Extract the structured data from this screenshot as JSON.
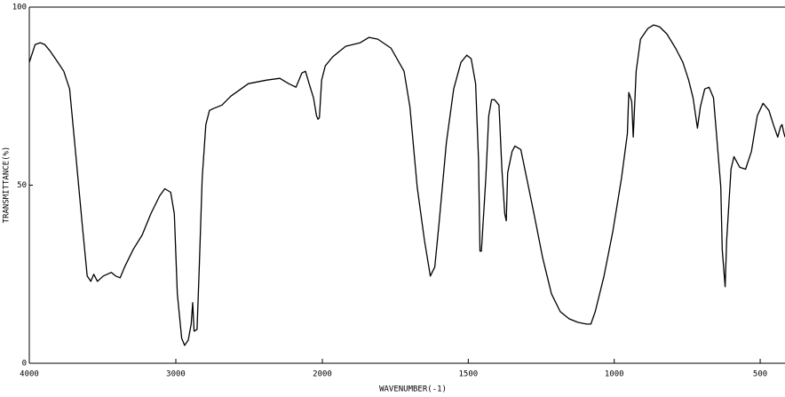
{
  "chart_data": {
    "type": "line",
    "x_label": "WAVENUMBER(-1)",
    "y_label": "TRANSMITTANCE(%)",
    "xlim": [
      4000,
      415
    ],
    "xticks": [
      4000,
      3000,
      2000,
      1500,
      1000,
      500
    ],
    "x_scale_change": 2000,
    "ylim": [
      0,
      100
    ],
    "yticks": [
      0,
      50,
      100
    ],
    "series": [
      {
        "color": "#000000",
        "x": [
          4000,
          3960,
          3925,
          3895,
          3855,
          3805,
          3765,
          3725,
          3685,
          3640,
          3605,
          3580,
          3560,
          3535,
          3495,
          3440,
          3410,
          3380,
          3350,
          3290,
          3230,
          3170,
          3110,
          3075,
          3035,
          3010,
          2990,
          2960,
          2940,
          2915,
          2895,
          2885,
          2875,
          2855,
          2840,
          2820,
          2795,
          2770,
          2745,
          2685,
          2625,
          2505,
          2380,
          2290,
          2230,
          2180,
          2140,
          2115,
          2090,
          2060,
          2040,
          2030,
          2020,
          2005,
          1990,
          1965,
          1920,
          1870,
          1840,
          1810,
          1765,
          1720,
          1700,
          1675,
          1650,
          1630,
          1615,
          1600,
          1575,
          1550,
          1525,
          1505,
          1490,
          1475,
          1465,
          1460,
          1455,
          1440,
          1430,
          1420,
          1410,
          1395,
          1385,
          1375,
          1370,
          1365,
          1350,
          1340,
          1320,
          1300,
          1275,
          1245,
          1215,
          1185,
          1155,
          1125,
          1095,
          1080,
          1065,
          1035,
          1005,
          975,
          955,
          950,
          940,
          935,
          925,
          910,
          885,
          865,
          845,
          820,
          790,
          765,
          745,
          730,
          715,
          705,
          690,
          675,
          660,
          650,
          635,
          630,
          620,
          615,
          600,
          590,
          570,
          550,
          530,
          510,
          490,
          470,
          455,
          440,
          430,
          425,
          420,
          415
        ],
        "values": [
          84.5,
          89.5,
          90,
          89.5,
          87.5,
          84.5,
          82,
          77,
          59.5,
          39.5,
          24.5,
          23,
          25,
          23,
          24.5,
          25.5,
          24.5,
          24,
          27,
          32,
          36,
          42,
          47,
          49,
          48,
          42,
          19.5,
          7,
          5,
          6.5,
          11,
          17,
          9,
          9.5,
          27,
          52,
          67,
          71,
          71.5,
          72.5,
          75,
          78.5,
          79.5,
          80,
          78.5,
          77.5,
          81.5,
          82,
          78.5,
          74.5,
          69.5,
          68.5,
          69,
          79.5,
          83.5,
          86,
          89,
          90,
          91.5,
          91,
          88.5,
          82,
          72,
          49.5,
          34.5,
          24.5,
          27,
          39.5,
          62,
          77,
          84.5,
          86.5,
          85.5,
          78.5,
          57,
          31.5,
          31.5,
          52,
          69.5,
          74,
          74,
          72.5,
          54.5,
          42,
          40,
          53.5,
          59.5,
          61,
          60,
          52,
          42,
          29.5,
          19.5,
          14.5,
          12.5,
          11.5,
          11,
          11,
          14.5,
          24.5,
          37,
          52,
          64.5,
          76,
          73.5,
          63.5,
          82,
          91,
          94,
          95,
          94.5,
          92.5,
          88.5,
          84.5,
          79.5,
          74.5,
          66,
          72,
          77,
          77.5,
          74.5,
          64.5,
          49.5,
          32,
          21.5,
          34.5,
          54.5,
          58,
          55,
          54.5,
          59.5,
          69.5,
          73,
          71,
          67,
          63.5,
          66.5,
          67,
          65,
          63.5
        ]
      }
    ]
  }
}
